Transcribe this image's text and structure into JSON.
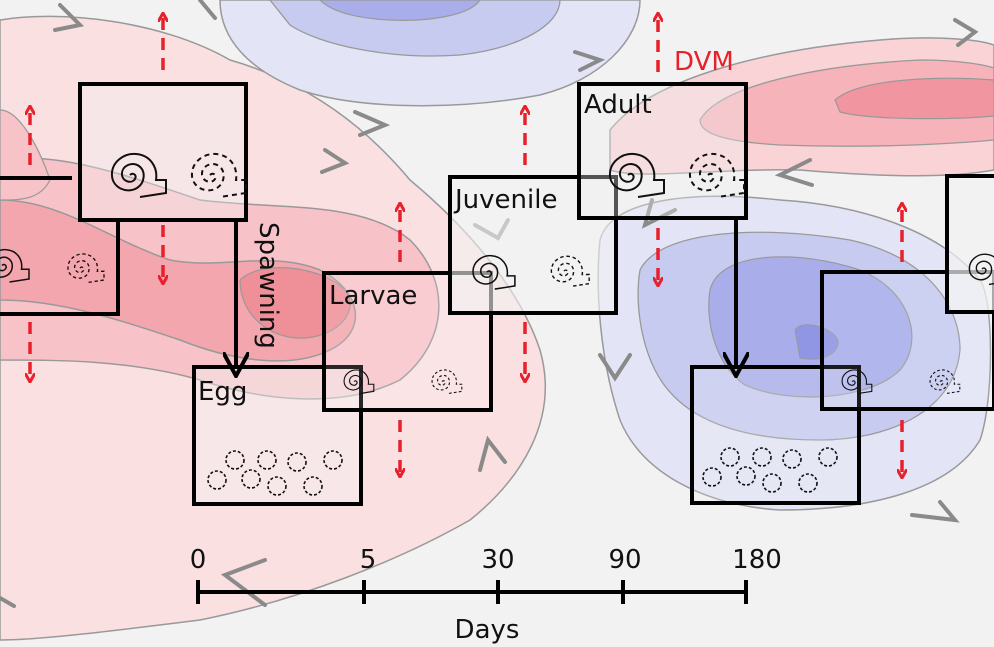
{
  "stages": {
    "egg": "Egg",
    "larvae": "Larvae",
    "juvenile": "Juvenile",
    "adult": "Adult"
  },
  "spawning_label": "Spawning",
  "dvm_label": "DVM",
  "axis": {
    "label": "Days",
    "ticks": [
      "0",
      "5",
      "30",
      "90",
      "180"
    ]
  },
  "colors": {
    "background": "#f2f2f2",
    "warm_anomaly": "#f28a93",
    "cool_anomaly": "#8f95e0",
    "migration_arrow": "#e8202a",
    "flow_arrow": "#8a8a8a",
    "box_stroke": "#000000"
  },
  "icons": [
    "spiral-shell-icon",
    "dashed-spiral-shell-icon",
    "egg-cluster-icon",
    "dashed-double-arrow-icon",
    "flow-chevron-icon"
  ]
}
